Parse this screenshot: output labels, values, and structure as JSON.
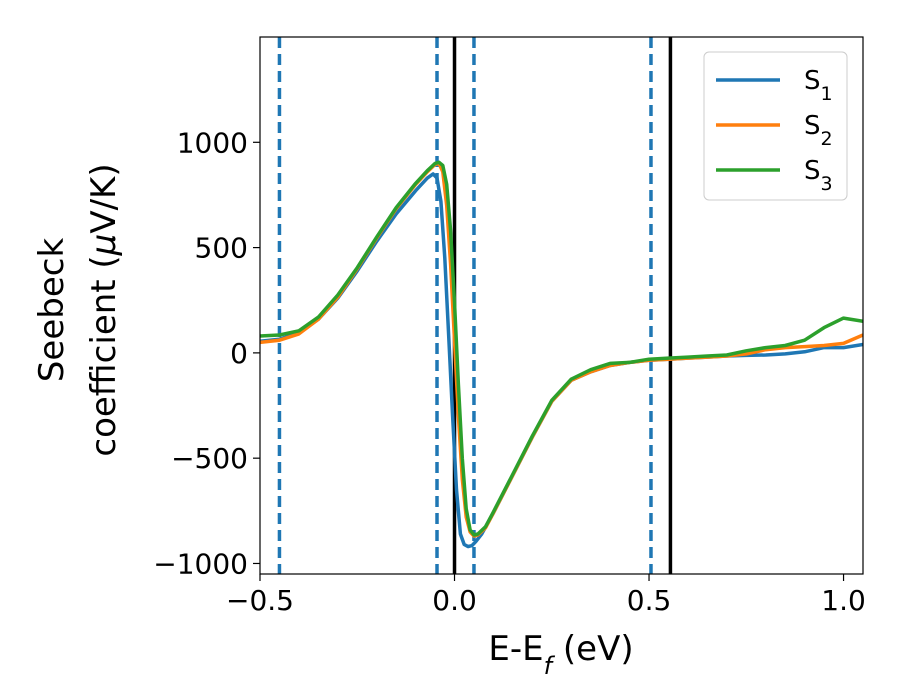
{
  "chart_data": {
    "type": "line",
    "xlabel": "E-E_f (eV)",
    "ylabel_line1": "Seebeck",
    "ylabel_line2": "coefficient  (μV/K)",
    "xlim": [
      -0.5,
      1.05
    ],
    "ylim": [
      -1050,
      1500
    ],
    "xticks": [
      -0.5,
      0.0,
      0.5,
      1.0
    ],
    "xtick_labels": [
      "−0.5",
      "0.0",
      "0.5",
      "1.0"
    ],
    "yticks": [
      -1000,
      -500,
      0,
      500,
      1000
    ],
    "ytick_labels": [
      "−1000",
      "−500",
      "0",
      "500",
      "1000"
    ],
    "grid": false,
    "legend_position": "top-right",
    "vlines_dashed": [
      -0.45,
      -0.045,
      0.05,
      0.505
    ],
    "vlines_solid": [
      0.0,
      0.555
    ],
    "vline_colors": {
      "dashed": "#1f77b4",
      "solid": "#000000"
    },
    "series": [
      {
        "name": "S_1",
        "color": "#1f77b4",
        "points": [
          [
            -0.5,
            55
          ],
          [
            -0.45,
            65
          ],
          [
            -0.4,
            95
          ],
          [
            -0.35,
            160
          ],
          [
            -0.3,
            260
          ],
          [
            -0.25,
            390
          ],
          [
            -0.2,
            530
          ],
          [
            -0.15,
            660
          ],
          [
            -0.1,
            770
          ],
          [
            -0.07,
            830
          ],
          [
            -0.055,
            850
          ],
          [
            -0.045,
            830
          ],
          [
            -0.035,
            720
          ],
          [
            -0.025,
            450
          ],
          [
            -0.015,
            80
          ],
          [
            -0.005,
            -300
          ],
          [
            0.005,
            -650
          ],
          [
            0.015,
            -860
          ],
          [
            0.025,
            -910
          ],
          [
            0.035,
            -920
          ],
          [
            0.045,
            -915
          ],
          [
            0.055,
            -895
          ],
          [
            0.07,
            -860
          ],
          [
            0.1,
            -760
          ],
          [
            0.15,
            -580
          ],
          [
            0.2,
            -400
          ],
          [
            0.25,
            -230
          ],
          [
            0.3,
            -130
          ],
          [
            0.35,
            -90
          ],
          [
            0.4,
            -60
          ],
          [
            0.45,
            -45
          ],
          [
            0.5,
            -35
          ],
          [
            0.55,
            -30
          ],
          [
            0.6,
            -25
          ],
          [
            0.65,
            -20
          ],
          [
            0.7,
            -15
          ],
          [
            0.75,
            -12
          ],
          [
            0.8,
            -10
          ],
          [
            0.85,
            -5
          ],
          [
            0.9,
            5
          ],
          [
            0.95,
            25
          ],
          [
            1.0,
            25
          ],
          [
            1.05,
            40
          ]
        ]
      },
      {
        "name": "S_2",
        "color": "#ff7f0e",
        "points": [
          [
            -0.5,
            50
          ],
          [
            -0.45,
            60
          ],
          [
            -0.4,
            90
          ],
          [
            -0.35,
            160
          ],
          [
            -0.3,
            265
          ],
          [
            -0.25,
            400
          ],
          [
            -0.2,
            545
          ],
          [
            -0.15,
            685
          ],
          [
            -0.1,
            800
          ],
          [
            -0.07,
            860
          ],
          [
            -0.05,
            895
          ],
          [
            -0.04,
            900
          ],
          [
            -0.03,
            860
          ],
          [
            -0.02,
            700
          ],
          [
            -0.01,
            420
          ],
          [
            0.0,
            60
          ],
          [
            0.01,
            -300
          ],
          [
            0.02,
            -600
          ],
          [
            0.03,
            -780
          ],
          [
            0.04,
            -850
          ],
          [
            0.05,
            -870
          ],
          [
            0.06,
            -865
          ],
          [
            0.08,
            -830
          ],
          [
            0.1,
            -760
          ],
          [
            0.15,
            -580
          ],
          [
            0.2,
            -400
          ],
          [
            0.25,
            -230
          ],
          [
            0.3,
            -130
          ],
          [
            0.35,
            -90
          ],
          [
            0.4,
            -60
          ],
          [
            0.45,
            -45
          ],
          [
            0.5,
            -35
          ],
          [
            0.55,
            -30
          ],
          [
            0.6,
            -25
          ],
          [
            0.65,
            -20
          ],
          [
            0.7,
            -15
          ],
          [
            0.75,
            -5
          ],
          [
            0.8,
            15
          ],
          [
            0.85,
            25
          ],
          [
            0.9,
            30
          ],
          [
            0.95,
            35
          ],
          [
            1.0,
            45
          ],
          [
            1.05,
            85
          ]
        ]
      },
      {
        "name": "S_3",
        "color": "#2ca02c",
        "points": [
          [
            -0.5,
            80
          ],
          [
            -0.45,
            85
          ],
          [
            -0.4,
            105
          ],
          [
            -0.35,
            170
          ],
          [
            -0.3,
            275
          ],
          [
            -0.25,
            405
          ],
          [
            -0.2,
            550
          ],
          [
            -0.15,
            690
          ],
          [
            -0.1,
            805
          ],
          [
            -0.07,
            865
          ],
          [
            -0.05,
            900
          ],
          [
            -0.04,
            905
          ],
          [
            -0.03,
            890
          ],
          [
            -0.02,
            800
          ],
          [
            -0.01,
            580
          ],
          [
            0.0,
            240
          ],
          [
            0.01,
            -150
          ],
          [
            0.02,
            -500
          ],
          [
            0.03,
            -740
          ],
          [
            0.04,
            -840
          ],
          [
            0.05,
            -865
          ],
          [
            0.06,
            -860
          ],
          [
            0.08,
            -825
          ],
          [
            0.1,
            -755
          ],
          [
            0.15,
            -575
          ],
          [
            0.2,
            -395
          ],
          [
            0.25,
            -225
          ],
          [
            0.3,
            -125
          ],
          [
            0.35,
            -80
          ],
          [
            0.4,
            -50
          ],
          [
            0.45,
            -45
          ],
          [
            0.5,
            -30
          ],
          [
            0.55,
            -25
          ],
          [
            0.6,
            -20
          ],
          [
            0.65,
            -15
          ],
          [
            0.7,
            -10
          ],
          [
            0.75,
            10
          ],
          [
            0.8,
            25
          ],
          [
            0.85,
            35
          ],
          [
            0.9,
            60
          ],
          [
            0.95,
            120
          ],
          [
            1.0,
            165
          ],
          [
            1.05,
            150
          ]
        ]
      }
    ]
  }
}
